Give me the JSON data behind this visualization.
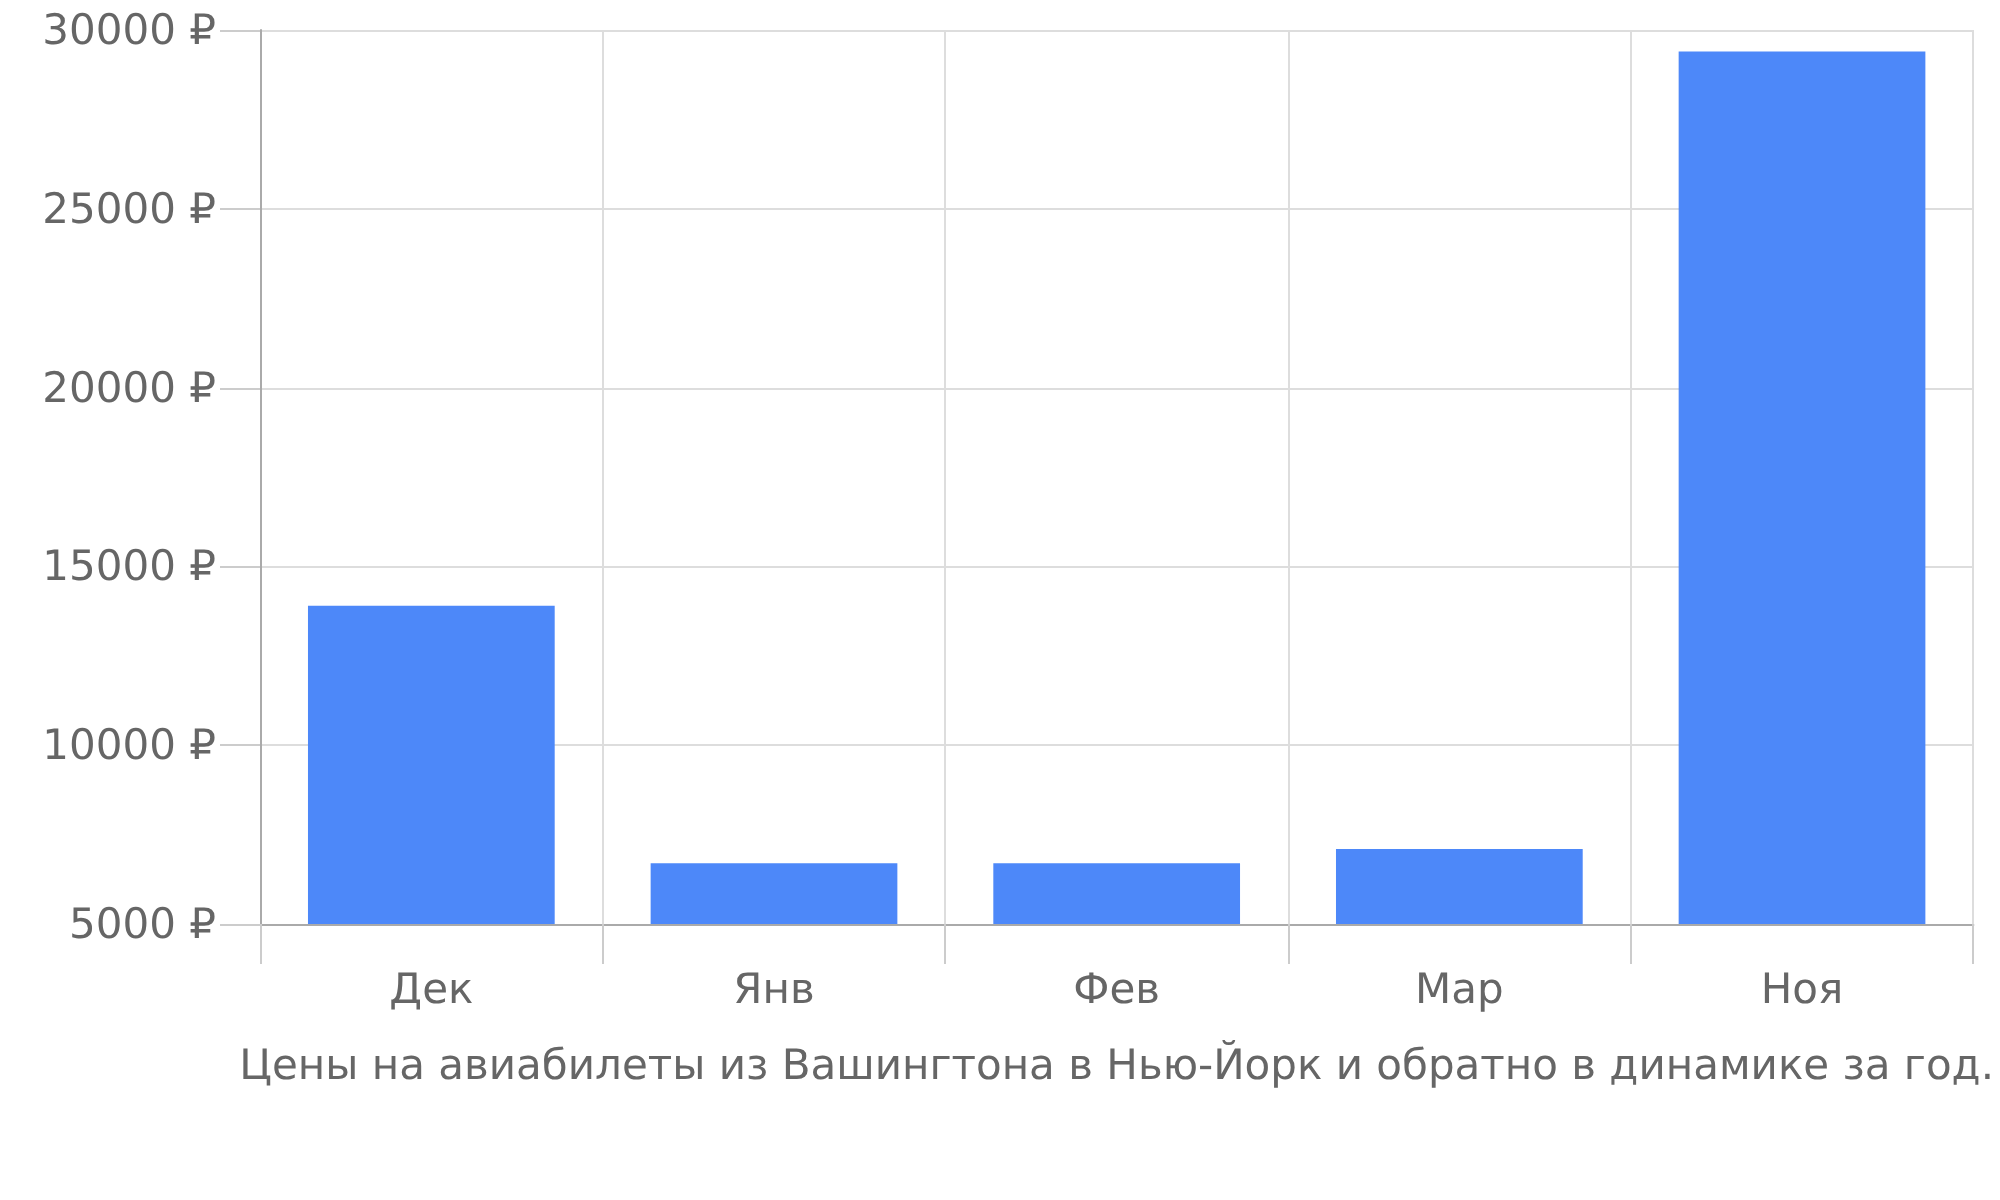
{
  "chart_data": {
    "type": "bar",
    "xlabel": "Цены на авиабилеты из Вашингтона в Нью-Йорк и обратно в динамике за год.",
    "categories": [
      "Дек",
      "Янв",
      "Фев",
      "Мар",
      "Ноя"
    ],
    "values": [
      13900,
      6700,
      6700,
      7100,
      29400
    ],
    "color": "#4d88f9",
    "ylim": [
      5000,
      30000
    ],
    "yticks": [
      {
        "value": 5000,
        "label": "5000 ₽"
      },
      {
        "value": 10000,
        "label": "10000 ₽"
      },
      {
        "value": 15000,
        "label": "15000 ₽"
      },
      {
        "value": 20000,
        "label": "20000 ₽"
      },
      {
        "value": 25000,
        "label": "25000 ₽"
      },
      {
        "value": 30000,
        "label": "30000 ₽"
      }
    ],
    "grid": true
  }
}
